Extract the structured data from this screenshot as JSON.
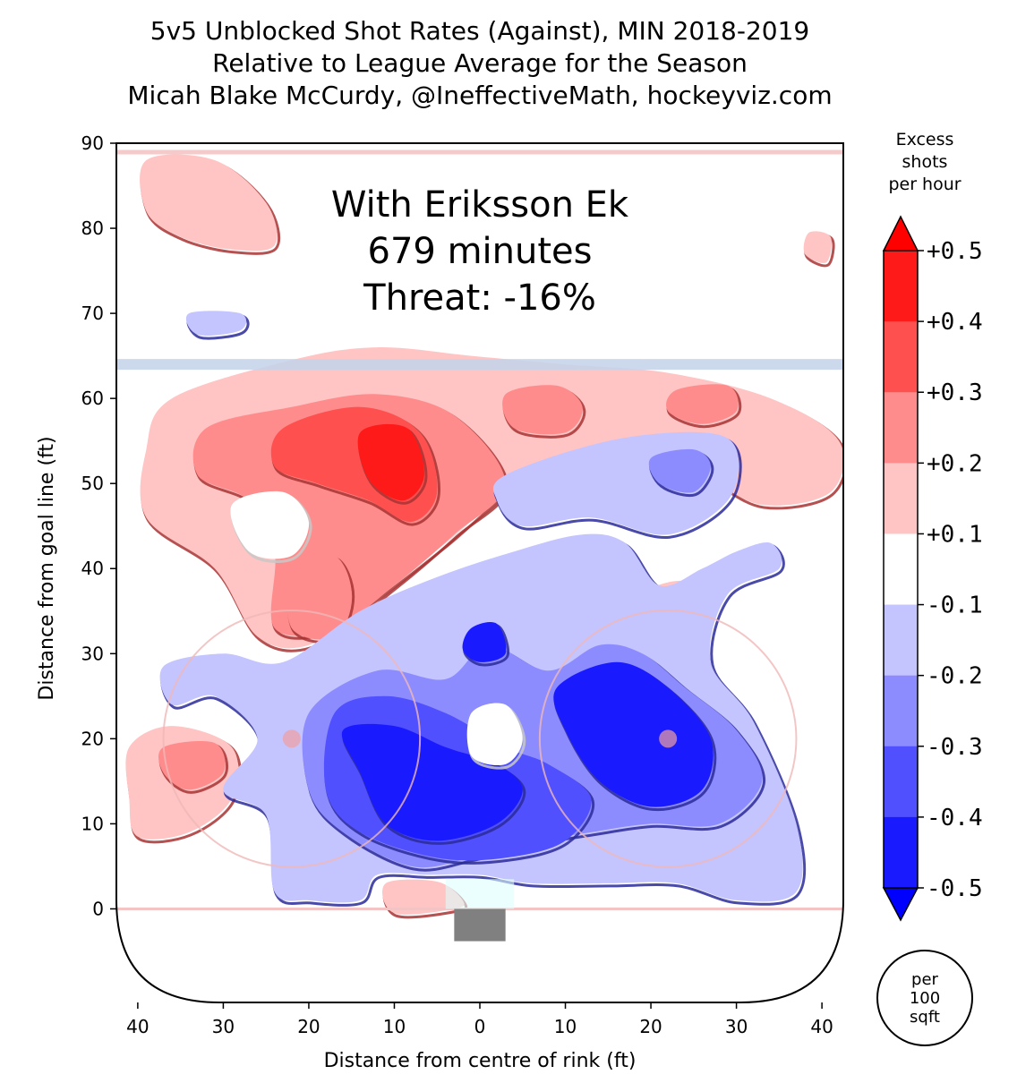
{
  "chart_data": {
    "type": "heatmap",
    "title_lines": [
      "5v5 Unblocked Shot Rates (Against), MIN 2018-2019",
      "Relative to League Average for the Season",
      "Micah Blake McCurdy, @IneffectiveMath, hockeyviz.com"
    ],
    "xlabel": "Distance from centre of rink (ft)",
    "ylabel": "Distance from goal line (ft)",
    "xlim": [
      -42.5,
      42.5
    ],
    "ylim": [
      -11,
      90
    ],
    "x_ticks": [
      -40,
      -30,
      -20,
      -10,
      0,
      10,
      20,
      30,
      40
    ],
    "x_tick_labels": [
      "40",
      "30",
      "20",
      "10",
      "0",
      "10",
      "20",
      "30",
      "40"
    ],
    "y_ticks": [
      0,
      10,
      20,
      30,
      40,
      50,
      60,
      70,
      80,
      90
    ],
    "y_tick_labels": [
      "0",
      "10",
      "20",
      "30",
      "40",
      "50",
      "60",
      "70",
      "80",
      "90"
    ],
    "annotation": [
      "With Eriksson Ek",
      "679 minutes",
      "Threat: -16%"
    ],
    "colorbar": {
      "title_lines": [
        "Excess",
        "shots",
        "per hour"
      ],
      "tick_labels": [
        "+0.5",
        "+0.4",
        "+0.3",
        "+0.2",
        "+0.1",
        "-0.1",
        "-0.2",
        "-0.3",
        "-0.4",
        "-0.5"
      ],
      "bands": [
        "#ff1a1a",
        "#ff5050",
        "#ff8c8c",
        "#ffc4c4",
        "#ffffff",
        "#c4c4ff",
        "#8c8cff",
        "#5050ff",
        "#1a1aff"
      ],
      "extend_colors": [
        "#ff0000",
        "#0000ff"
      ],
      "unit_lines": [
        "per",
        "100",
        "sqft"
      ]
    },
    "regions": [
      {
        "level": 1,
        "points": [
          [
            -36,
            60
          ],
          [
            -22,
            64.5
          ],
          [
            -12,
            66
          ],
          [
            -1,
            65
          ],
          [
            10,
            64
          ],
          [
            22,
            63
          ],
          [
            34,
            60
          ],
          [
            42,
            55
          ],
          [
            41,
            49
          ],
          [
            33,
            47.5
          ],
          [
            26,
            51
          ],
          [
            18,
            54
          ],
          [
            10,
            53
          ],
          [
            3,
            49
          ],
          [
            -4,
            43
          ],
          [
            -13,
            36
          ],
          [
            -20,
            31
          ],
          [
            -26,
            32
          ],
          [
            -31,
            40
          ],
          [
            -39,
            46
          ],
          [
            -39,
            54
          ]
        ]
      },
      {
        "level": 2,
        "points": [
          [
            -32,
            56.5
          ],
          [
            -22,
            59
          ],
          [
            -12,
            60.5
          ],
          [
            -3,
            58
          ],
          [
            3,
            50
          ],
          [
            -3,
            44
          ],
          [
            -10,
            38
          ],
          [
            -17,
            33
          ],
          [
            -24,
            33
          ],
          [
            -24,
            42
          ],
          [
            -27,
            48
          ],
          [
            -33,
            51
          ]
        ]
      },
      {
        "level": 3,
        "points": [
          [
            -23,
            56.5
          ],
          [
            -14,
            59
          ],
          [
            -7,
            56
          ],
          [
            -5,
            49
          ],
          [
            -8,
            45.5
          ],
          [
            -13,
            48
          ],
          [
            -19,
            50
          ],
          [
            -24,
            52
          ]
        ]
      },
      {
        "level": 4,
        "points": [
          [
            -14,
            56
          ],
          [
            -8.5,
            56.5
          ],
          [
            -6.5,
            51
          ],
          [
            -9,
            48
          ],
          [
            -13,
            50.5
          ]
        ]
      },
      {
        "level": 2,
        "points": [
          [
            -22,
            40
          ],
          [
            -17,
            41.5
          ],
          [
            -15,
            37
          ],
          [
            -17,
            32
          ],
          [
            -22,
            33
          ]
        ]
      },
      {
        "level": 0,
        "points": [
          [
            -29,
            47.5
          ],
          [
            -23,
            49
          ],
          [
            -20,
            45.5
          ],
          [
            -22,
            41.5
          ],
          [
            -27,
            42
          ]
        ]
      },
      {
        "level": 2,
        "points": [
          [
            3,
            60.5
          ],
          [
            9,
            61.5
          ],
          [
            12,
            59
          ],
          [
            10,
            56
          ],
          [
            4,
            56.5
          ]
        ]
      },
      {
        "level": 2,
        "points": [
          [
            23,
            61
          ],
          [
            29,
            61.5
          ],
          [
            30,
            58.5
          ],
          [
            26,
            57
          ],
          [
            22,
            58.5
          ]
        ]
      },
      {
        "level": 1,
        "points": [
          [
            -39,
            88
          ],
          [
            -31,
            88
          ],
          [
            -25,
            83
          ],
          [
            -24,
            78
          ],
          [
            -29,
            77.5
          ],
          [
            -35,
            79
          ],
          [
            -39,
            82
          ]
        ]
      },
      {
        "level": 1,
        "points": [
          [
            38.5,
            79.5
          ],
          [
            41,
            79
          ],
          [
            40.5,
            76
          ],
          [
            38,
            77
          ]
        ]
      },
      {
        "level": 1,
        "points": [
          [
            -41,
            19
          ],
          [
            -36,
            21.5
          ],
          [
            -29,
            19
          ],
          [
            -29,
            13
          ],
          [
            -34,
            9
          ],
          [
            -40,
            8.5
          ],
          [
            -41,
            13
          ]
        ]
      },
      {
        "level": 2,
        "points": [
          [
            -37,
            19
          ],
          [
            -31,
            19.5
          ],
          [
            -30,
            16
          ],
          [
            -34,
            14
          ],
          [
            -37,
            16
          ]
        ]
      },
      {
        "level": 1,
        "points": [
          [
            -11,
            3
          ],
          [
            -5,
            3.2
          ],
          [
            -2,
            1
          ],
          [
            -3,
            0
          ],
          [
            -10,
            -0.5
          ]
        ]
      },
      {
        "level": 1,
        "points": [
          [
            19,
            37
          ],
          [
            24,
            38.5
          ],
          [
            26,
            35
          ],
          [
            23,
            31.5
          ],
          [
            19,
            33
          ]
        ]
      },
      {
        "level": -1,
        "points": [
          [
            -37,
            28.5
          ],
          [
            -30,
            30
          ],
          [
            -23,
            29
          ],
          [
            -14,
            35
          ],
          [
            -5,
            39
          ],
          [
            4,
            42
          ],
          [
            12,
            44
          ],
          [
            17,
            43
          ],
          [
            21,
            38
          ],
          [
            26,
            40
          ],
          [
            30,
            42
          ],
          [
            34,
            43
          ],
          [
            35,
            40
          ],
          [
            29,
            37
          ],
          [
            27,
            29
          ],
          [
            32,
            22
          ],
          [
            37,
            10
          ],
          [
            37,
            2
          ],
          [
            30,
            1
          ],
          [
            23,
            3
          ],
          [
            15,
            3
          ],
          [
            6,
            3
          ],
          [
            0,
            4
          ],
          [
            -6,
            4
          ],
          [
            -12,
            4
          ],
          [
            -14,
            1
          ],
          [
            -20,
            1
          ],
          [
            -24,
            2
          ],
          [
            -25,
            11
          ],
          [
            -30,
            14
          ],
          [
            -26,
            20
          ],
          [
            -31,
            25
          ],
          [
            -36,
            24
          ]
        ]
      },
      {
        "level": -1,
        "points": [
          [
            3,
            51
          ],
          [
            15,
            55
          ],
          [
            26,
            56
          ],
          [
            30,
            54
          ],
          [
            29,
            48
          ],
          [
            22,
            44
          ],
          [
            13,
            46
          ],
          [
            5,
            45
          ],
          [
            2,
            48
          ]
        ]
      },
      {
        "level": -2,
        "points": [
          [
            20,
            53
          ],
          [
            25,
            54
          ],
          [
            27,
            52
          ],
          [
            25,
            49
          ],
          [
            21,
            50
          ]
        ]
      },
      {
        "level": -1,
        "points": [
          [
            -34,
            70
          ],
          [
            -28,
            70
          ],
          [
            -28,
            68
          ],
          [
            -33,
            67.5
          ]
        ]
      },
      {
        "level": -2,
        "points": [
          [
            -20,
            23
          ],
          [
            -12,
            28
          ],
          [
            -4,
            27
          ],
          [
            1,
            31
          ],
          [
            8,
            28
          ],
          [
            14,
            31
          ],
          [
            19,
            30
          ],
          [
            24,
            26
          ],
          [
            30,
            21
          ],
          [
            33,
            15
          ],
          [
            28,
            10
          ],
          [
            20,
            10
          ],
          [
            13,
            9
          ],
          [
            7,
            8
          ],
          [
            -1,
            6
          ],
          [
            -8,
            5
          ],
          [
            -16,
            9
          ],
          [
            -20,
            14
          ]
        ]
      },
      {
        "level": -3,
        "points": [
          [
            -17,
            23
          ],
          [
            -11,
            25
          ],
          [
            -4,
            23
          ],
          [
            3,
            19
          ],
          [
            8,
            17
          ],
          [
            13,
            13
          ],
          [
            10,
            8
          ],
          [
            3,
            6
          ],
          [
            -5,
            6
          ],
          [
            -14,
            9
          ],
          [
            -18,
            14
          ]
        ]
      },
      {
        "level": -4,
        "points": [
          [
            -16,
            21
          ],
          [
            -10,
            21.5
          ],
          [
            -4,
            19
          ],
          [
            2,
            17
          ],
          [
            5,
            14
          ],
          [
            2,
            10
          ],
          [
            -5,
            8
          ],
          [
            -11,
            10
          ],
          [
            -14,
            16
          ]
        ]
      },
      {
        "level": -4,
        "points": [
          [
            9,
            26
          ],
          [
            16,
            29
          ],
          [
            22,
            26
          ],
          [
            27,
            20
          ],
          [
            26,
            14
          ],
          [
            20,
            12
          ],
          [
            14,
            15
          ],
          [
            10,
            21
          ]
        ]
      },
      {
        "level": -4,
        "points": [
          [
            -1,
            33
          ],
          [
            2,
            33.5
          ],
          [
            3,
            30
          ],
          [
            0,
            29
          ],
          [
            -2,
            30.5
          ]
        ]
      },
      {
        "level": 0,
        "points": [
          [
            -1,
            23
          ],
          [
            3,
            24
          ],
          [
            5,
            20
          ],
          [
            3,
            17
          ],
          [
            -1,
            18
          ]
        ]
      }
    ],
    "rink_lines": [
      {
        "type": "goal_line",
        "y": 0,
        "color": "#f4c4c4"
      },
      {
        "type": "blue_line",
        "y": 64,
        "color": "#c6d4ea"
      },
      {
        "type": "red_line",
        "y": 89,
        "color": "#f4c4c4"
      }
    ],
    "faceoff_circles": [
      {
        "x": -22,
        "y": 20,
        "r": 15
      },
      {
        "x": 22,
        "y": 20,
        "r": 15
      }
    ]
  }
}
